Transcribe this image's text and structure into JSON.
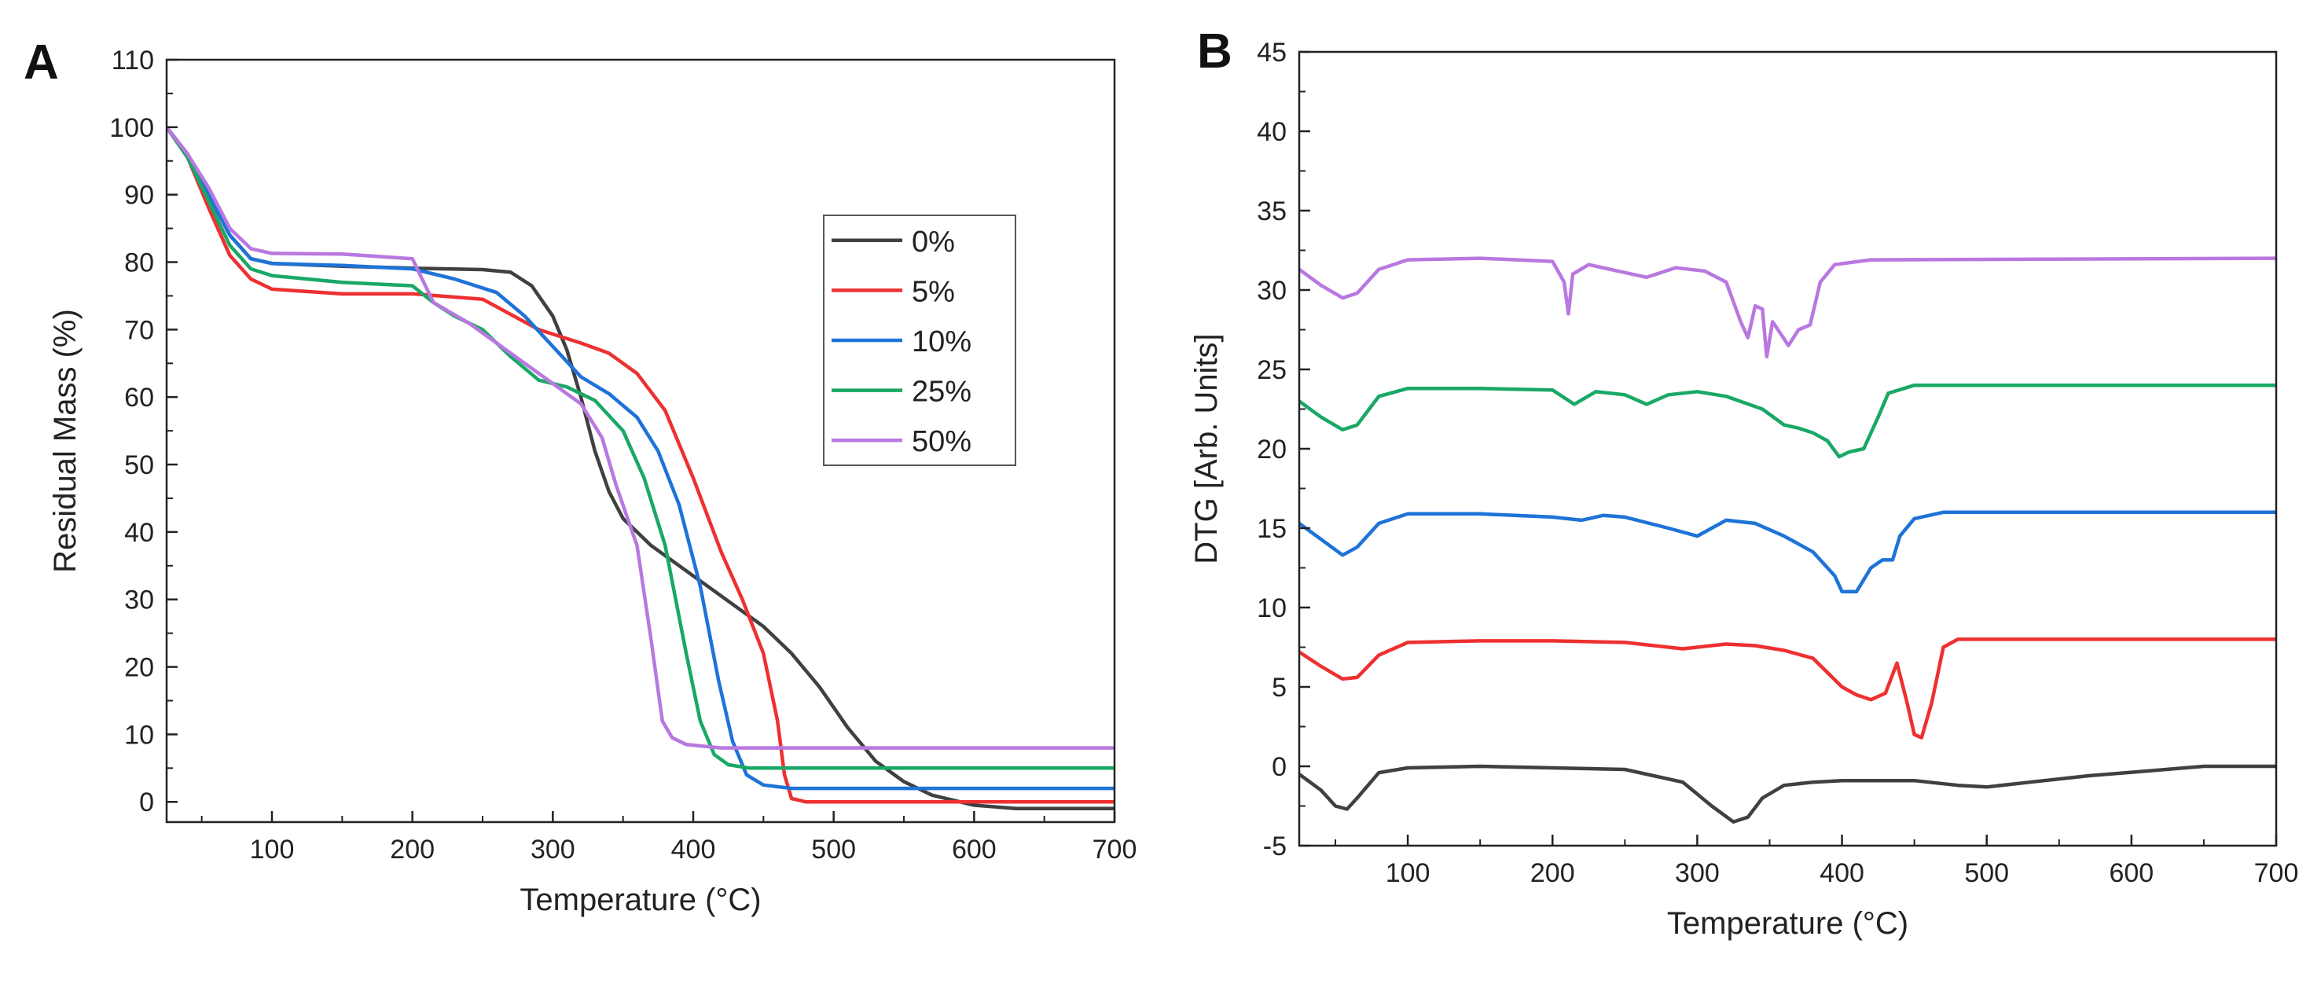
{
  "chart_data": [
    {
      "panel_label": "A",
      "type": "line",
      "title": "",
      "xlabel": "Temperature (°C)",
      "ylabel": "Residual Mass (%)",
      "xlim": [
        25,
        700
      ],
      "ylim": [
        -3,
        110
      ],
      "xticks": [
        100,
        200,
        300,
        400,
        500,
        600,
        700
      ],
      "yticks": [
        0,
        10,
        20,
        30,
        40,
        50,
        60,
        70,
        80,
        90,
        100,
        110
      ],
      "grid": false,
      "legend": "right-center",
      "series": [
        {
          "name": "0%",
          "color": "#404040",
          "points": [
            [
              25,
              100
            ],
            [
              40,
              96
            ],
            [
              55,
              90
            ],
            [
              70,
              84
            ],
            [
              85,
              80.5
            ],
            [
              100,
              79.8
            ],
            [
              150,
              79.4
            ],
            [
              200,
              79.1
            ],
            [
              250,
              78.9
            ],
            [
              270,
              78.5
            ],
            [
              285,
              76.5
            ],
            [
              300,
              72
            ],
            [
              310,
              67
            ],
            [
              320,
              60
            ],
            [
              330,
              52
            ],
            [
              340,
              46
            ],
            [
              350,
              42
            ],
            [
              370,
              38
            ],
            [
              390,
              35
            ],
            [
              410,
              32
            ],
            [
              430,
              29
            ],
            [
              450,
              26
            ],
            [
              470,
              22
            ],
            [
              490,
              17
            ],
            [
              510,
              11
            ],
            [
              530,
              6
            ],
            [
              550,
              3
            ],
            [
              570,
              1
            ],
            [
              600,
              -0.5
            ],
            [
              630,
              -1
            ],
            [
              700,
              -1
            ]
          ]
        },
        {
          "name": "5%",
          "color": "#ee3030",
          "points": [
            [
              25,
              100
            ],
            [
              40,
              95.5
            ],
            [
              55,
              88
            ],
            [
              70,
              81
            ],
            [
              85,
              77.5
            ],
            [
              100,
              76
            ],
            [
              150,
              75.3
            ],
            [
              200,
              75.3
            ],
            [
              250,
              74.5
            ],
            [
              290,
              70
            ],
            [
              320,
              68
            ],
            [
              340,
              66.5
            ],
            [
              360,
              63.5
            ],
            [
              380,
              58
            ],
            [
              400,
              48
            ],
            [
              420,
              37
            ],
            [
              435,
              30
            ],
            [
              450,
              22
            ],
            [
              460,
              12
            ],
            [
              465,
              4
            ],
            [
              470,
              0.5
            ],
            [
              480,
              0
            ],
            [
              700,
              0
            ]
          ]
        },
        {
          "name": "10%",
          "color": "#1e73d8",
          "points": [
            [
              25,
              100
            ],
            [
              40,
              96
            ],
            [
              55,
              90
            ],
            [
              70,
              84
            ],
            [
              85,
              80.5
            ],
            [
              100,
              79.8
            ],
            [
              150,
              79.5
            ],
            [
              200,
              79
            ],
            [
              230,
              77.5
            ],
            [
              260,
              75.5
            ],
            [
              280,
              72
            ],
            [
              300,
              67.5
            ],
            [
              320,
              63
            ],
            [
              340,
              60.5
            ],
            [
              360,
              57
            ],
            [
              375,
              52
            ],
            [
              390,
              44
            ],
            [
              405,
              32
            ],
            [
              418,
              18
            ],
            [
              428,
              9
            ],
            [
              438,
              4
            ],
            [
              450,
              2.5
            ],
            [
              470,
              2
            ],
            [
              700,
              2
            ]
          ]
        },
        {
          "name": "25%",
          "color": "#19a866",
          "points": [
            [
              25,
              100
            ],
            [
              40,
              95.5
            ],
            [
              55,
              89
            ],
            [
              70,
              82.5
            ],
            [
              85,
              79
            ],
            [
              100,
              78
            ],
            [
              150,
              77
            ],
            [
              200,
              76.5
            ],
            [
              215,
              74
            ],
            [
              230,
              72
            ],
            [
              250,
              70
            ],
            [
              270,
              66
            ],
            [
              290,
              62.5
            ],
            [
              310,
              61.5
            ],
            [
              330,
              59.5
            ],
            [
              350,
              55
            ],
            [
              365,
              48
            ],
            [
              380,
              38
            ],
            [
              395,
              22
            ],
            [
              405,
              12
            ],
            [
              415,
              7
            ],
            [
              425,
              5.5
            ],
            [
              440,
              5
            ],
            [
              700,
              5
            ]
          ]
        },
        {
          "name": "50%",
          "color": "#b878e0",
          "points": [
            [
              25,
              100
            ],
            [
              40,
              96
            ],
            [
              55,
              91
            ],
            [
              70,
              85
            ],
            [
              85,
              82
            ],
            [
              100,
              81.3
            ],
            [
              150,
              81.2
            ],
            [
              200,
              80.5
            ],
            [
              215,
              74
            ],
            [
              240,
              71
            ],
            [
              260,
              68
            ],
            [
              280,
              65
            ],
            [
              300,
              62
            ],
            [
              320,
              59
            ],
            [
              335,
              54
            ],
            [
              345,
              47
            ],
            [
              360,
              38
            ],
            [
              370,
              24
            ],
            [
              378,
              12
            ],
            [
              385,
              9.5
            ],
            [
              395,
              8.5
            ],
            [
              420,
              8
            ],
            [
              700,
              8
            ]
          ]
        }
      ]
    },
    {
      "panel_label": "B",
      "type": "line",
      "title": "",
      "xlabel": "Temperature (°C)",
      "ylabel": "DTG [Arb. Units]",
      "xlim": [
        25,
        700
      ],
      "ylim": [
        -5,
        45
      ],
      "xticks": [
        100,
        200,
        300,
        400,
        500,
        600,
        700
      ],
      "yticks": [
        -5,
        0,
        5,
        10,
        15,
        20,
        25,
        30,
        35,
        40,
        45
      ],
      "grid": false,
      "legend": "none",
      "series": [
        {
          "name": "0%",
          "color": "#404040",
          "points": [
            [
              25,
              -0.5
            ],
            [
              40,
              -1.5
            ],
            [
              50,
              -2.5
            ],
            [
              58,
              -2.7
            ],
            [
              65,
              -2
            ],
            [
              80,
              -0.4
            ],
            [
              100,
              -0.1
            ],
            [
              150,
              0
            ],
            [
              200,
              -0.1
            ],
            [
              250,
              -0.2
            ],
            [
              290,
              -1
            ],
            [
              310,
              -2.5
            ],
            [
              325,
              -3.5
            ],
            [
              335,
              -3.2
            ],
            [
              345,
              -2
            ],
            [
              360,
              -1.2
            ],
            [
              380,
              -1
            ],
            [
              400,
              -0.9
            ],
            [
              450,
              -0.9
            ],
            [
              480,
              -1.2
            ],
            [
              500,
              -1.3
            ],
            [
              530,
              -1
            ],
            [
              570,
              -0.6
            ],
            [
              610,
              -0.3
            ],
            [
              650,
              0
            ],
            [
              700,
              0
            ]
          ]
        },
        {
          "name": "5%",
          "color": "#ee3030",
          "points": [
            [
              25,
              7.2
            ],
            [
              40,
              6.3
            ],
            [
              55,
              5.5
            ],
            [
              65,
              5.6
            ],
            [
              80,
              7
            ],
            [
              100,
              7.8
            ],
            [
              150,
              7.9
            ],
            [
              200,
              7.9
            ],
            [
              250,
              7.8
            ],
            [
              290,
              7.4
            ],
            [
              320,
              7.7
            ],
            [
              340,
              7.6
            ],
            [
              360,
              7.3
            ],
            [
              380,
              6.8
            ],
            [
              400,
              5
            ],
            [
              410,
              4.5
            ],
            [
              420,
              4.2
            ],
            [
              430,
              4.6
            ],
            [
              438,
              6.5
            ],
            [
              445,
              4
            ],
            [
              450,
              2
            ],
            [
              455,
              1.8
            ],
            [
              462,
              4
            ],
            [
              470,
              7.5
            ],
            [
              480,
              8
            ],
            [
              700,
              8
            ]
          ]
        },
        {
          "name": "10%",
          "color": "#1e73d8",
          "points": [
            [
              25,
              15.3
            ],
            [
              40,
              14.3
            ],
            [
              55,
              13.3
            ],
            [
              65,
              13.8
            ],
            [
              80,
              15.3
            ],
            [
              100,
              15.9
            ],
            [
              150,
              15.9
            ],
            [
              200,
              15.7
            ],
            [
              220,
              15.5
            ],
            [
              235,
              15.8
            ],
            [
              250,
              15.7
            ],
            [
              280,
              15
            ],
            [
              300,
              14.5
            ],
            [
              320,
              15.5
            ],
            [
              340,
              15.3
            ],
            [
              360,
              14.5
            ],
            [
              380,
              13.5
            ],
            [
              395,
              12
            ],
            [
              400,
              11
            ],
            [
              410,
              11
            ],
            [
              420,
              12.5
            ],
            [
              428,
              13
            ],
            [
              435,
              13
            ],
            [
              440,
              14.5
            ],
            [
              450,
              15.6
            ],
            [
              470,
              16
            ],
            [
              700,
              16
            ]
          ]
        },
        {
          "name": "25%",
          "color": "#19a866",
          "points": [
            [
              25,
              23
            ],
            [
              40,
              22
            ],
            [
              55,
              21.2
            ],
            [
              65,
              21.5
            ],
            [
              80,
              23.3
            ],
            [
              100,
              23.8
            ],
            [
              150,
              23.8
            ],
            [
              200,
              23.7
            ],
            [
              215,
              22.8
            ],
            [
              230,
              23.6
            ],
            [
              250,
              23.4
            ],
            [
              265,
              22.8
            ],
            [
              280,
              23.4
            ],
            [
              300,
              23.6
            ],
            [
              320,
              23.3
            ],
            [
              345,
              22.5
            ],
            [
              360,
              21.5
            ],
            [
              370,
              21.3
            ],
            [
              380,
              21
            ],
            [
              390,
              20.5
            ],
            [
              398,
              19.5
            ],
            [
              405,
              19.8
            ],
            [
              415,
              20
            ],
            [
              425,
              22
            ],
            [
              432,
              23.5
            ],
            [
              450,
              24
            ],
            [
              700,
              24
            ]
          ]
        },
        {
          "name": "50%",
          "color": "#b878e0",
          "points": [
            [
              25,
              31.3
            ],
            [
              40,
              30.3
            ],
            [
              55,
              29.5
            ],
            [
              65,
              29.8
            ],
            [
              80,
              31.3
            ],
            [
              100,
              31.9
            ],
            [
              150,
              32
            ],
            [
              200,
              31.8
            ],
            [
              208,
              30.5
            ],
            [
              211,
              28.5
            ],
            [
              214,
              31
            ],
            [
              225,
              31.6
            ],
            [
              245,
              31.2
            ],
            [
              265,
              30.8
            ],
            [
              285,
              31.4
            ],
            [
              305,
              31.2
            ],
            [
              320,
              30.5
            ],
            [
              330,
              28
            ],
            [
              335,
              27
            ],
            [
              340,
              29
            ],
            [
              345,
              28.8
            ],
            [
              348,
              25.8
            ],
            [
              352,
              28
            ],
            [
              358,
              27.2
            ],
            [
              363,
              26.5
            ],
            [
              370,
              27.5
            ],
            [
              378,
              27.8
            ],
            [
              385,
              30.5
            ],
            [
              395,
              31.6
            ],
            [
              420,
              31.9
            ],
            [
              700,
              32
            ]
          ]
        }
      ]
    }
  ]
}
